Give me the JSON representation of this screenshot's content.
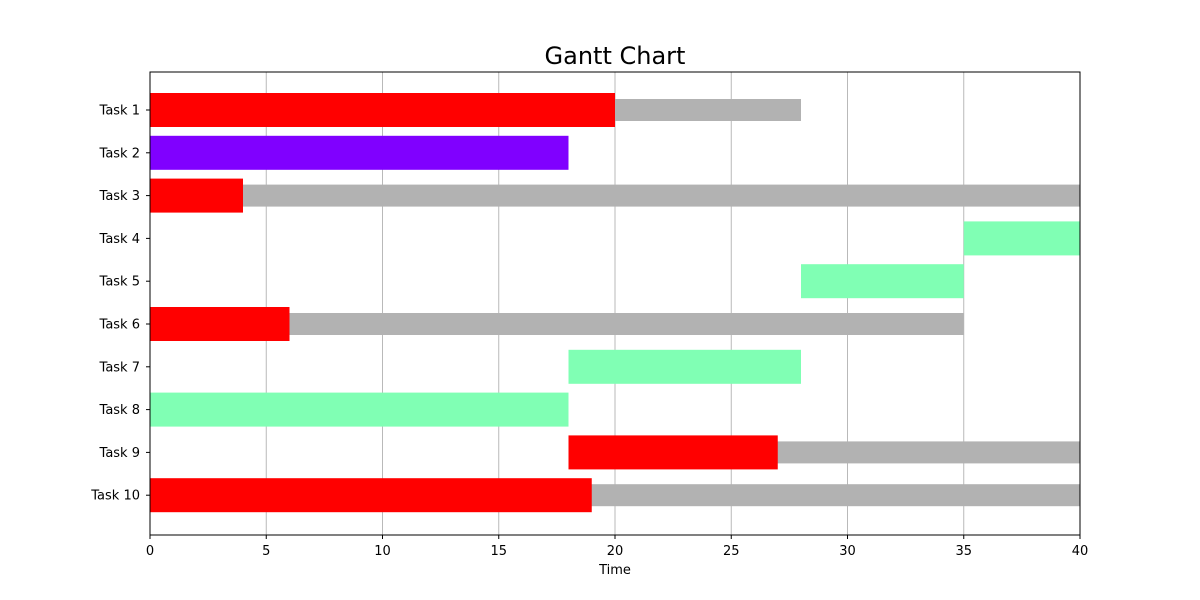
{
  "chart_data": {
    "type": "gantt",
    "title": "Gantt Chart",
    "xlabel": "Time",
    "ylabel": "",
    "xlim": [
      0,
      40
    ],
    "x_ticks": [
      0,
      5,
      10,
      15,
      20,
      25,
      30,
      35,
      40
    ],
    "grid": "vertical",
    "legend": "none",
    "colors": {
      "progress_background": "#b2b2b2",
      "red": "#ff0000",
      "violet": "#8000ff",
      "mint": "#80ffb4"
    },
    "tasks": [
      {
        "name": "Task 1",
        "start": 0,
        "end": 28,
        "progress_end": 20,
        "color": "#ff0000"
      },
      {
        "name": "Task 2",
        "start": 0,
        "end": 18,
        "progress_end": 18,
        "color": "#8000ff"
      },
      {
        "name": "Task 3",
        "start": 0,
        "end": 40,
        "progress_end": 4,
        "color": "#ff0000"
      },
      {
        "name": "Task 4",
        "start": 35,
        "end": 40,
        "progress_end": 40,
        "color": "#80ffb4"
      },
      {
        "name": "Task 5",
        "start": 28,
        "end": 35,
        "progress_end": 35,
        "color": "#80ffb4"
      },
      {
        "name": "Task 6",
        "start": 0,
        "end": 35,
        "progress_end": 6,
        "color": "#ff0000"
      },
      {
        "name": "Task 7",
        "start": 18,
        "end": 28,
        "progress_end": 28,
        "color": "#80ffb4"
      },
      {
        "name": "Task 8",
        "start": 0,
        "end": 18,
        "progress_end": 18,
        "color": "#80ffb4"
      },
      {
        "name": "Task 9",
        "start": 18,
        "end": 40,
        "progress_end": 27,
        "color": "#ff0000"
      },
      {
        "name": "Task 10",
        "start": 0,
        "end": 40,
        "progress_end": 19,
        "color": "#ff0000"
      }
    ]
  }
}
